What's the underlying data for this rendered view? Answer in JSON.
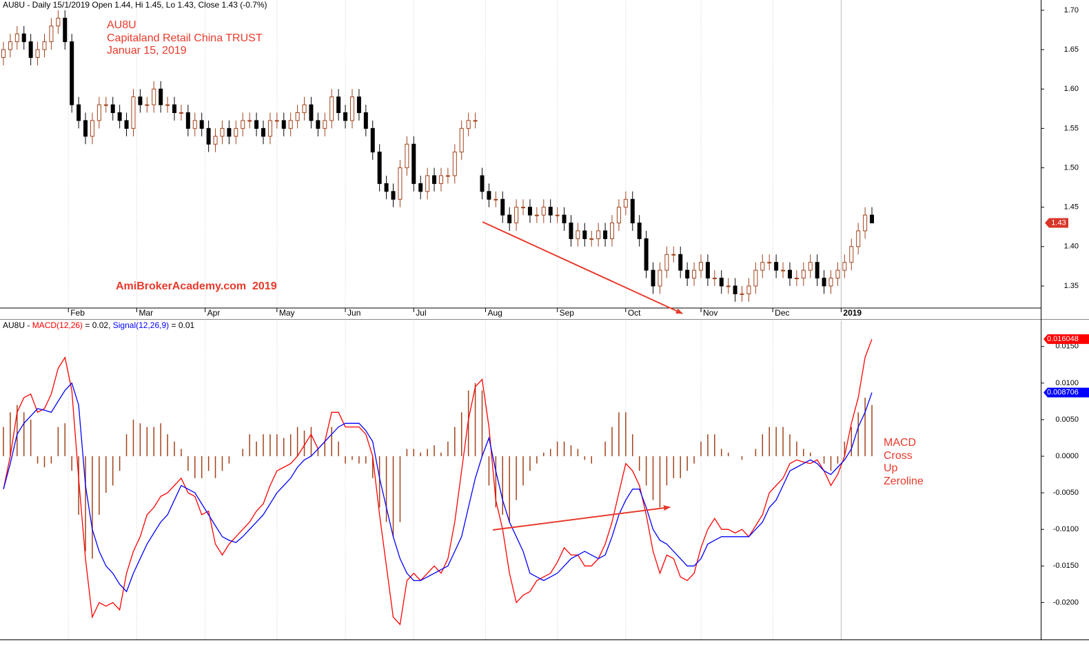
{
  "chart_data": [
    {
      "type": "candlestick",
      "title": "AU8U - Daily 15/1/2019 Open 1.44, Hi 1.45, Lo 1.43, Close 1.43 (-0.7%)",
      "annotations": [
        "AU8U",
        "Capitaland Retail China TRUST",
        "Januar 15, 2019",
        "AmiBrokerAcademy.com  2019"
      ],
      "last_value_label": "1.43",
      "up_color": "#a0401a",
      "down_color": "#000000",
      "grid": true,
      "xlim": [
        -0.5,
        127.5
      ],
      "xticks": [
        {
          "value": 9.5,
          "label": "Feb"
        },
        {
          "value": 19.5,
          "label": "Mar"
        },
        {
          "value": 29.5,
          "label": "Apr"
        },
        {
          "value": 40,
          "label": "May"
        },
        {
          "value": 50,
          "label": "Jun"
        },
        {
          "value": 60,
          "label": "Jul"
        },
        {
          "value": 70.5,
          "label": "Aug"
        },
        {
          "value": 81,
          "label": "Sep"
        },
        {
          "value": 91,
          "label": "Oct"
        },
        {
          "value": 102,
          "label": "Nov"
        },
        {
          "value": 112.5,
          "label": "Dec"
        },
        {
          "value": 122.5,
          "label": "2019"
        }
      ],
      "ylim": [
        1.322,
        1.713
      ],
      "yticks": [
        1.35,
        {
          "value": 1.4,
          "label": "1.40"
        },
        1.45,
        {
          "value": 1.5,
          "label": "1.50"
        },
        1.55,
        {
          "value": 1.6,
          "label": "1.60"
        },
        1.65,
        {
          "value": 1.7,
          "label": "1.70"
        }
      ],
      "open": [
        1.64,
        1.65,
        1.66,
        1.67,
        1.66,
        1.64,
        1.65,
        1.66,
        1.68,
        1.69,
        1.66,
        1.58,
        1.56,
        1.54,
        1.56,
        1.58,
        1.58,
        1.57,
        1.56,
        1.55,
        1.59,
        1.58,
        1.58,
        1.6,
        1.58,
        1.58,
        1.57,
        1.57,
        1.55,
        1.56,
        1.55,
        1.53,
        1.54,
        1.55,
        1.54,
        1.55,
        1.56,
        1.56,
        1.55,
        1.54,
        1.56,
        1.56,
        1.55,
        1.56,
        1.57,
        1.58,
        1.56,
        1.55,
        1.56,
        1.59,
        1.57,
        1.56,
        1.59,
        1.57,
        1.55,
        1.52,
        1.48,
        1.47,
        1.46,
        1.5,
        1.53,
        1.48,
        1.47,
        1.49,
        1.48,
        1.49,
        1.49,
        1.52,
        1.55,
        1.56,
        1.49,
        1.47,
        1.46,
        1.46,
        1.44,
        1.43,
        1.45,
        1.45,
        1.44,
        1.44,
        1.45,
        1.44,
        1.44,
        1.43,
        1.41,
        1.42,
        1.41,
        1.41,
        1.42,
        1.41,
        1.43,
        1.45,
        1.46,
        1.43,
        1.41,
        1.37,
        1.35,
        1.37,
        1.39,
        1.39,
        1.37,
        1.36,
        1.37,
        1.38,
        1.36,
        1.36,
        1.35,
        1.35,
        1.34,
        1.34,
        1.35,
        1.37,
        1.38,
        1.38,
        1.37,
        1.37,
        1.36,
        1.36,
        1.37,
        1.38,
        1.36,
        1.35,
        1.36,
        1.37,
        1.38,
        1.4,
        1.42,
        1.44
      ],
      "high": [
        1.66,
        1.67,
        1.68,
        1.68,
        1.67,
        1.66,
        1.67,
        1.69,
        1.7,
        1.7,
        1.67,
        1.59,
        1.57,
        1.57,
        1.59,
        1.59,
        1.59,
        1.58,
        1.57,
        1.6,
        1.6,
        1.59,
        1.61,
        1.61,
        1.59,
        1.59,
        1.58,
        1.58,
        1.57,
        1.57,
        1.56,
        1.55,
        1.56,
        1.56,
        1.56,
        1.57,
        1.57,
        1.57,
        1.56,
        1.57,
        1.57,
        1.57,
        1.57,
        1.58,
        1.59,
        1.59,
        1.57,
        1.57,
        1.6,
        1.6,
        1.58,
        1.6,
        1.6,
        1.58,
        1.56,
        1.53,
        1.49,
        1.48,
        1.51,
        1.54,
        1.54,
        1.49,
        1.5,
        1.5,
        1.5,
        1.5,
        1.53,
        1.56,
        1.57,
        1.57,
        1.5,
        1.48,
        1.47,
        1.47,
        1.45,
        1.46,
        1.46,
        1.46,
        1.45,
        1.46,
        1.46,
        1.45,
        1.45,
        1.44,
        1.43,
        1.43,
        1.42,
        1.43,
        1.43,
        1.44,
        1.46,
        1.47,
        1.47,
        1.44,
        1.42,
        1.38,
        1.38,
        1.4,
        1.4,
        1.4,
        1.38,
        1.38,
        1.39,
        1.39,
        1.37,
        1.37,
        1.36,
        1.36,
        1.35,
        1.36,
        1.38,
        1.39,
        1.39,
        1.39,
        1.38,
        1.38,
        1.37,
        1.38,
        1.39,
        1.39,
        1.37,
        1.37,
        1.38,
        1.39,
        1.41,
        1.43,
        1.45,
        1.45
      ],
      "low": [
        1.63,
        1.64,
        1.65,
        1.65,
        1.63,
        1.63,
        1.64,
        1.65,
        1.67,
        1.65,
        1.57,
        1.55,
        1.53,
        1.53,
        1.55,
        1.57,
        1.56,
        1.55,
        1.54,
        1.54,
        1.57,
        1.57,
        1.57,
        1.57,
        1.57,
        1.56,
        1.56,
        1.54,
        1.54,
        1.54,
        1.52,
        1.52,
        1.53,
        1.53,
        1.53,
        1.54,
        1.55,
        1.54,
        1.53,
        1.53,
        1.55,
        1.54,
        1.54,
        1.55,
        1.56,
        1.55,
        1.54,
        1.54,
        1.55,
        1.56,
        1.55,
        1.55,
        1.56,
        1.54,
        1.51,
        1.47,
        1.46,
        1.45,
        1.45,
        1.49,
        1.47,
        1.46,
        1.46,
        1.47,
        1.47,
        1.48,
        1.48,
        1.51,
        1.54,
        1.55,
        1.46,
        1.45,
        1.45,
        1.43,
        1.42,
        1.42,
        1.44,
        1.43,
        1.43,
        1.43,
        1.43,
        1.43,
        1.42,
        1.4,
        1.4,
        1.4,
        1.4,
        1.4,
        1.4,
        1.4,
        1.42,
        1.44,
        1.42,
        1.4,
        1.36,
        1.34,
        1.34,
        1.36,
        1.38,
        1.36,
        1.35,
        1.35,
        1.36,
        1.35,
        1.35,
        1.34,
        1.34,
        1.33,
        1.33,
        1.33,
        1.34,
        1.36,
        1.37,
        1.36,
        1.36,
        1.35,
        1.35,
        1.35,
        1.36,
        1.35,
        1.34,
        1.34,
        1.35,
        1.36,
        1.37,
        1.39,
        1.41,
        1.43
      ],
      "close": [
        1.65,
        1.66,
        1.67,
        1.66,
        1.64,
        1.65,
        1.66,
        1.68,
        1.69,
        1.66,
        1.58,
        1.56,
        1.54,
        1.56,
        1.58,
        1.58,
        1.57,
        1.56,
        1.55,
        1.59,
        1.58,
        1.58,
        1.6,
        1.58,
        1.58,
        1.57,
        1.57,
        1.55,
        1.56,
        1.55,
        1.53,
        1.54,
        1.55,
        1.54,
        1.55,
        1.56,
        1.56,
        1.55,
        1.54,
        1.56,
        1.56,
        1.55,
        1.56,
        1.57,
        1.58,
        1.56,
        1.55,
        1.56,
        1.59,
        1.57,
        1.56,
        1.59,
        1.57,
        1.55,
        1.52,
        1.48,
        1.47,
        1.46,
        1.5,
        1.53,
        1.48,
        1.47,
        1.49,
        1.48,
        1.49,
        1.49,
        1.52,
        1.55,
        1.56,
        1.56,
        1.47,
        1.46,
        1.46,
        1.44,
        1.43,
        1.45,
        1.45,
        1.44,
        1.44,
        1.45,
        1.44,
        1.44,
        1.43,
        1.41,
        1.42,
        1.41,
        1.41,
        1.42,
        1.41,
        1.43,
        1.45,
        1.46,
        1.43,
        1.41,
        1.37,
        1.35,
        1.37,
        1.39,
        1.39,
        1.37,
        1.36,
        1.37,
        1.38,
        1.36,
        1.36,
        1.35,
        1.35,
        1.34,
        1.34,
        1.35,
        1.37,
        1.38,
        1.38,
        1.37,
        1.37,
        1.36,
        1.36,
        1.37,
        1.38,
        1.36,
        1.35,
        1.36,
        1.37,
        1.38,
        1.4,
        1.42,
        1.44,
        1.43
      ]
    },
    {
      "type": "macd",
      "title_prefix": "AU8U -",
      "annotations": [
        "MACD",
        "Cross",
        "Up",
        "Zeroline"
      ],
      "ylim": [
        -0.02505,
        0.01856
      ],
      "yticks": [
        {
          "value": -0.02,
          "label": "-0.0200"
        },
        {
          "value": -0.015,
          "label": "-0.0150"
        },
        {
          "value": -0.01,
          "label": "-0.0100"
        },
        {
          "value": -0.005,
          "label": "-0.0050"
        },
        {
          "value": 0,
          "label": "0.0000"
        },
        {
          "value": 0.005,
          "label": "0.0050"
        },
        {
          "value": 0.01,
          "label": "0.0100"
        },
        {
          "value": 0.015,
          "label": "0.0150"
        }
      ],
      "series": [
        {
          "name": "MACD(12,26)",
          "current": "= 0.02,",
          "value_label": "0.016048",
          "color": "#ff0000",
          "values": [
            -0.0045,
            0.0,
            0.006,
            0.008,
            0.0085,
            0.006,
            0.0065,
            0.0085,
            0.012,
            0.0135,
            0.009,
            -0.003,
            -0.014,
            -0.022,
            -0.02,
            -0.0205,
            -0.02,
            -0.021,
            -0.016,
            -0.013,
            -0.011,
            -0.008,
            -0.007,
            -0.0055,
            -0.005,
            -0.004,
            -0.003,
            -0.005,
            -0.0055,
            -0.008,
            -0.0075,
            -0.012,
            -0.0135,
            -0.012,
            -0.011,
            -0.01,
            -0.009,
            -0.0075,
            -0.0065,
            -0.004,
            -0.002,
            -0.0015,
            -0.001,
            0.0,
            0.0015,
            0.003,
            0.001,
            0.002,
            0.006,
            0.006,
            0.004,
            0.004,
            0.004,
            0.003,
            0.0,
            -0.008,
            -0.015,
            -0.022,
            -0.023,
            -0.017,
            -0.016,
            -0.017,
            -0.016,
            -0.015,
            -0.016,
            -0.014,
            -0.009,
            -0.002,
            0.005,
            0.0095,
            0.0105,
            0.004,
            -0.006,
            -0.01,
            -0.016,
            -0.02,
            -0.019,
            -0.0185,
            -0.017,
            -0.0165,
            -0.016,
            -0.0145,
            -0.0125,
            -0.0135,
            -0.0135,
            -0.015,
            -0.015,
            -0.014,
            -0.012,
            -0.009,
            -0.005,
            -0.001,
            -0.002,
            -0.004,
            -0.008,
            -0.013,
            -0.016,
            -0.0135,
            -0.014,
            -0.0165,
            -0.017,
            -0.016,
            -0.0125,
            -0.01,
            -0.0085,
            -0.01,
            -0.01,
            -0.0105,
            -0.01,
            -0.011,
            -0.0095,
            -0.008,
            -0.005,
            -0.004,
            -0.003,
            -0.001,
            -0.0005,
            -0.0008,
            -0.001,
            -0.0005,
            -0.002,
            -0.004,
            -0.0025,
            0.0,
            0.0045,
            0.008,
            0.0135,
            0.016
          ]
        },
        {
          "name": "Signal(12,26,9)",
          "current": "= 0.01",
          "value_label": "0.008706",
          "color": "#0000ff",
          "values": [
            -0.0045,
            -0.001,
            0.003,
            0.0045,
            0.0055,
            0.0065,
            0.0063,
            0.006,
            0.0075,
            0.009,
            0.01,
            0.007,
            -0.004,
            -0.01,
            -0.013,
            -0.015,
            -0.016,
            -0.0175,
            -0.0185,
            -0.016,
            -0.014,
            -0.012,
            -0.0105,
            -0.009,
            -0.008,
            -0.006,
            -0.004,
            -0.0045,
            -0.005,
            -0.0065,
            -0.008,
            -0.0095,
            -0.011,
            -0.0115,
            -0.0118,
            -0.011,
            -0.01,
            -0.009,
            -0.008,
            -0.0065,
            -0.005,
            -0.004,
            -0.003,
            -0.0015,
            -0.0005,
            0.0,
            0.001,
            0.002,
            0.003,
            0.004,
            0.0045,
            0.0045,
            0.0045,
            0.0035,
            0.002,
            -0.003,
            -0.007,
            -0.011,
            -0.014,
            -0.016,
            -0.017,
            -0.017,
            -0.0165,
            -0.016,
            -0.0155,
            -0.015,
            -0.013,
            -0.011,
            -0.007,
            -0.003,
            0.0,
            0.0025,
            -0.002,
            -0.006,
            -0.009,
            -0.011,
            -0.013,
            -0.016,
            -0.0165,
            -0.017,
            -0.0165,
            -0.016,
            -0.015,
            -0.014,
            -0.0135,
            -0.013,
            -0.0135,
            -0.014,
            -0.0135,
            -0.011,
            -0.008,
            -0.006,
            -0.0045,
            -0.0045,
            -0.007,
            -0.01,
            -0.0115,
            -0.012,
            -0.013,
            -0.014,
            -0.015,
            -0.015,
            -0.014,
            -0.012,
            -0.0115,
            -0.011,
            -0.011,
            -0.011,
            -0.011,
            -0.011,
            -0.01,
            -0.009,
            -0.007,
            -0.006,
            -0.004,
            -0.002,
            -0.0015,
            -0.001,
            -0.0005,
            -0.001,
            -0.002,
            -0.0025,
            -0.0015,
            -0.0005,
            0.001,
            0.004,
            0.006,
            0.0087
          ]
        }
      ],
      "histogram": {
        "color": "#a0401a",
        "values": [
          0.004,
          0.006,
          0.007,
          0.006,
          0.005,
          -0.001,
          -0.0015,
          -0.001,
          0.004,
          0.0045,
          -0.002,
          -0.008,
          -0.013,
          -0.014,
          -0.008,
          -0.005,
          -0.004,
          -0.002,
          0.003,
          0.005,
          0.0045,
          0.004,
          0.004,
          0.0045,
          0.003,
          0.002,
          0.001,
          -0.002,
          -0.003,
          -0.003,
          -0.002,
          -0.003,
          -0.002,
          -0.001,
          0.0,
          0.001,
          0.003,
          0.002,
          0.003,
          0.003,
          0.003,
          0.0025,
          0.003,
          0.004,
          0.0035,
          0.004,
          0.001,
          0.002,
          0.004,
          0.002,
          -0.001,
          -0.0005,
          -0.001,
          -0.001,
          -0.003,
          -0.007,
          -0.009,
          -0.011,
          -0.009,
          0.001,
          0.001,
          0.0005,
          0.001,
          0.0015,
          0.0005,
          0.002,
          0.004,
          0.006,
          0.009,
          0.01,
          0.009,
          -0.004,
          -0.007,
          -0.008,
          -0.009,
          -0.006,
          -0.004,
          -0.002,
          -0.001,
          0.0005,
          0.001,
          0.002,
          0.002,
          0.0015,
          0.001,
          -0.0005,
          -0.001,
          0.0,
          0.002,
          0.004,
          0.006,
          0.006,
          0.003,
          -0.002,
          -0.004,
          -0.006,
          -0.007,
          -0.004,
          -0.003,
          -0.003,
          -0.002,
          -0.001,
          0.002,
          0.003,
          0.003,
          0.001,
          0.0005,
          0.0,
          -0.0005,
          0.0,
          0.001,
          0.003,
          0.004,
          0.004,
          0.004,
          0.003,
          0.002,
          0.001,
          0.0005,
          0.0,
          -0.001,
          -0.002,
          -0.001,
          0.002,
          0.004,
          0.006,
          0.008,
          0.007
        ]
      }
    }
  ]
}
